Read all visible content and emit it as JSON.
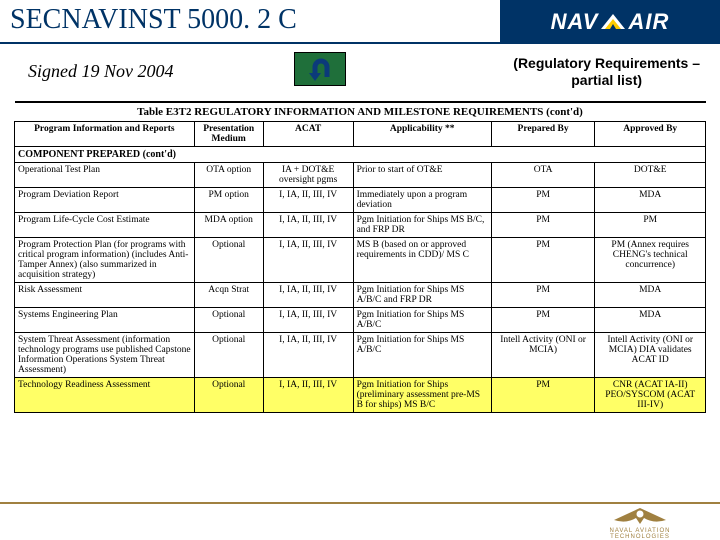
{
  "header": {
    "title": "SECNAVINST 5000. 2 C",
    "logo_left": "NAV",
    "logo_right": "AIR"
  },
  "subrow": {
    "signed": "Signed 19 Nov 2004",
    "note_line1": "(Regulatory Requirements –",
    "note_line2": "partial list)"
  },
  "colors": {
    "navy": "#003366",
    "green": "#1f6f3a",
    "highlight": "#ffff66",
    "gold": "#a08040"
  },
  "table": {
    "title": "Table E3T2 REGULATORY INFORMATION AND MILESTONE REQUIREMENTS (cont'd)",
    "col_widths_pct": [
      26,
      10,
      13,
      20,
      15,
      16
    ],
    "columns": [
      "Program Information and Reports",
      "Presentation Medium",
      "ACAT",
      "Applicability **",
      "Prepared By",
      "Approved By"
    ],
    "section": "COMPONENT PREPARED (cont'd)",
    "rows": [
      {
        "cells": [
          "Operational Test Plan",
          "OTA option",
          "IA + DOT&E oversight pgms",
          "Prior to start of OT&E",
          "OTA",
          "DOT&E"
        ]
      },
      {
        "cells": [
          "Program Deviation Report",
          "PM option",
          "I, IA, II, III, IV",
          "Immediately upon a program deviation",
          "PM",
          "MDA"
        ]
      },
      {
        "cells": [
          "Program Life-Cycle Cost Estimate",
          "MDA option",
          "I, IA, II, III, IV",
          "Pgm Initiation for Ships MS B/C, and FRP DR",
          "PM",
          "PM"
        ]
      },
      {
        "cells": [
          "Program Protection Plan (for programs with critical program information) (includes Anti-Tamper Annex) (also summarized in acquisition strategy)",
          "Optional",
          "I, IA, II, III, IV",
          "MS B (based on or approved requirements in CDD)/ MS C",
          "PM",
          "PM (Annex requires CHENG's technical concurrence)"
        ]
      },
      {
        "cells": [
          "Risk Assessment",
          "Acqn Strat",
          "I, IA, II, III, IV",
          "Pgm Initiation for Ships MS A/B/C and FRP DR",
          "PM",
          "MDA"
        ]
      },
      {
        "cells": [
          "Systems Engineering Plan",
          "Optional",
          "I, IA, II, III, IV",
          "Pgm Initiation for Ships MS A/B/C",
          "PM",
          "MDA"
        ]
      },
      {
        "cells": [
          "System Threat Assessment (information technology programs use published Capstone Information Operations System Threat Assessment)",
          "Optional",
          "I, IA, II, III, IV",
          "Pgm Initiation for Ships MS A/B/C",
          "Intell Activity (ONI or MCIA)",
          "Intell Activity (ONI or MCIA) DIA validates ACAT ID"
        ]
      },
      {
        "cells": [
          "Technology Readiness Assessment",
          "Optional",
          "I, IA, II, III, IV",
          "Pgm Initiation for Ships (preliminary assessment pre-MS B for ships) MS B/C",
          "PM",
          "CNR (ACAT IA-II) PEO/SYSCOM (ACAT III-IV)"
        ],
        "highlight": true
      }
    ]
  },
  "footer": {
    "tagline": "NAVAL AVIATION TECHNOLOGIES"
  }
}
